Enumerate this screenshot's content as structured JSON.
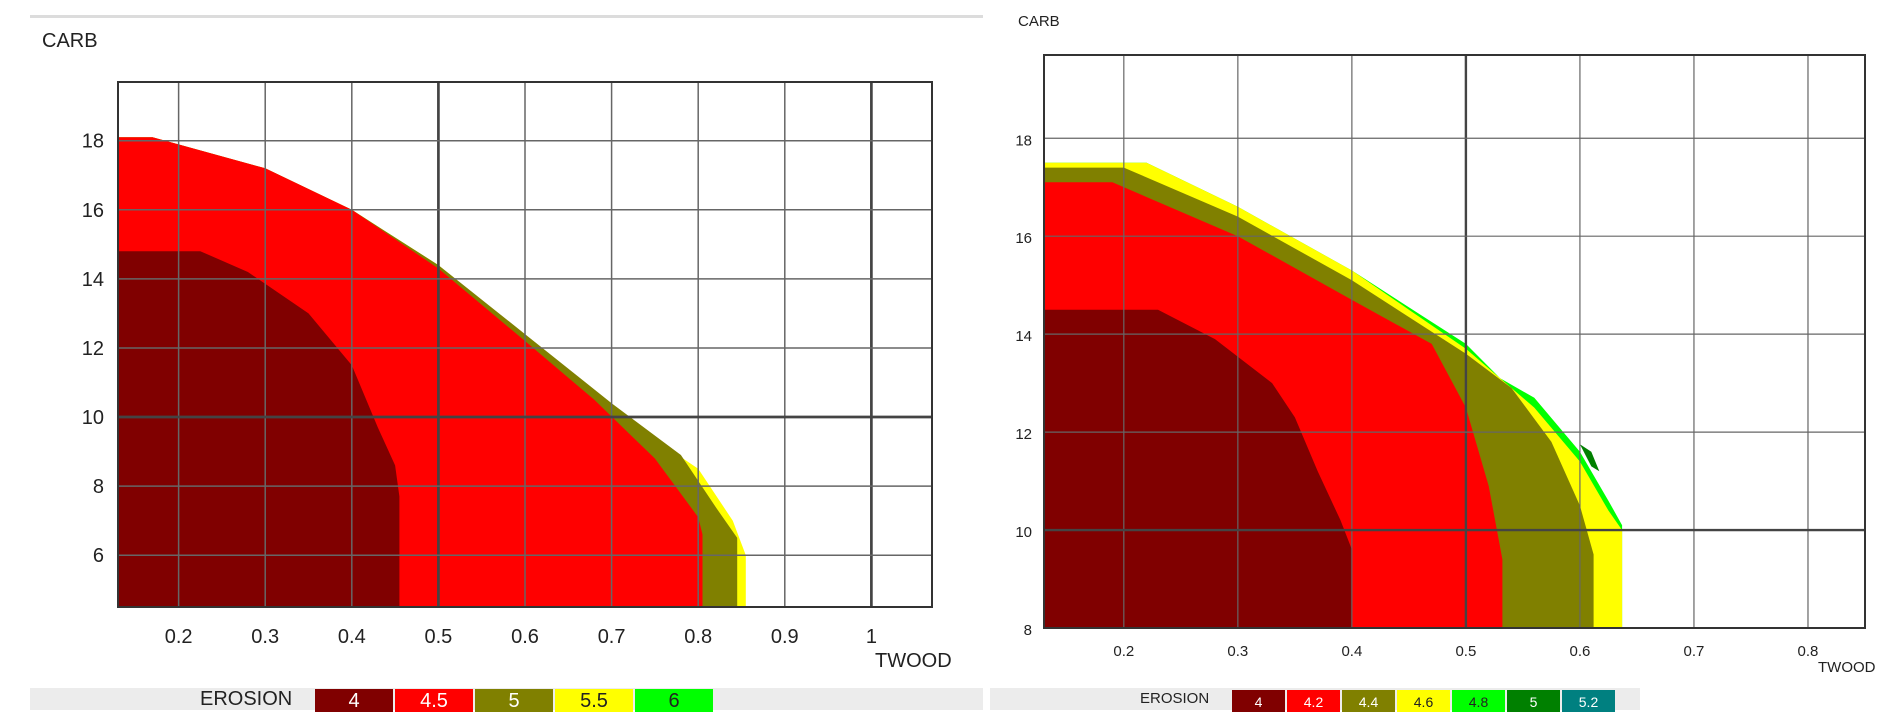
{
  "chart_data": [
    {
      "type": "area",
      "xlabel": "TWOOD",
      "ylabel": "CARB",
      "xlim": [
        0.13,
        1.07
      ],
      "ylim": [
        4.5,
        19.7
      ],
      "xticks": [
        0.2,
        0.3,
        0.4,
        0.5,
        0.6,
        0.7,
        0.8,
        0.9,
        1
      ],
      "xtick_labels": [
        "0.2",
        "0.3",
        "0.4",
        "0.5",
        "0.6",
        "0.7",
        "0.8",
        "0.9",
        "1"
      ],
      "yticks": [
        6,
        8,
        10,
        12,
        14,
        16,
        18
      ],
      "ytick_labels": [
        "6",
        "8",
        "10",
        "12",
        "14",
        "16",
        "18"
      ],
      "legend": {
        "title": "EROSION",
        "entries": [
          {
            "label": "4",
            "color": "#800000"
          },
          {
            "label": "4.5",
            "color": "#ff0000"
          },
          {
            "label": "5",
            "color": "#808000"
          },
          {
            "label": "5.5",
            "color": "#ffff00"
          },
          {
            "label": "6",
            "color": "#00ff00"
          }
        ]
      },
      "series": [
        {
          "name": "5.5",
          "color": "#ffff00",
          "x": [
            0.13,
            0.17,
            0.3,
            0.4,
            0.5,
            0.6,
            0.7,
            0.8,
            0.84,
            0.855,
            0.855,
            0.13
          ],
          "y": [
            18.1,
            18.1,
            17.2,
            16,
            14.4,
            12.2,
            10.2,
            8.5,
            7,
            6,
            4.5,
            4.5
          ]
        },
        {
          "name": "5",
          "color": "#808000",
          "x": [
            0.13,
            0.17,
            0.3,
            0.4,
            0.5,
            0.6,
            0.7,
            0.78,
            0.82,
            0.845,
            0.845,
            0.13
          ],
          "y": [
            18.1,
            18.1,
            17.2,
            16,
            14.4,
            12.4,
            10.4,
            8.9,
            7.4,
            6.5,
            4.5,
            4.5
          ]
        },
        {
          "name": "4.5",
          "color": "#ff0000",
          "x": [
            0.13,
            0.17,
            0.3,
            0.4,
            0.5,
            0.6,
            0.68,
            0.75,
            0.8,
            0.805,
            0.805,
            0.13
          ],
          "y": [
            18.1,
            18.1,
            17.2,
            16,
            14.3,
            12.2,
            10.5,
            8.8,
            7.1,
            6.6,
            4.5,
            4.5
          ]
        },
        {
          "name": "4",
          "color": "#800000",
          "x": [
            0.13,
            0.225,
            0.28,
            0.35,
            0.4,
            0.43,
            0.45,
            0.455,
            0.455,
            0.13
          ],
          "y": [
            14.8,
            14.8,
            14.2,
            13,
            11.5,
            9.7,
            8.6,
            7.7,
            4.5,
            4.5
          ]
        }
      ]
    },
    {
      "type": "area",
      "xlabel": "TWOOD",
      "ylabel": "CARB",
      "xlim": [
        0.13,
        0.85
      ],
      "ylim": [
        8,
        19.7
      ],
      "xticks": [
        0.2,
        0.3,
        0.4,
        0.5,
        0.6,
        0.7,
        0.8
      ],
      "xtick_labels": [
        "0.2",
        "0.3",
        "0.4",
        "0.5",
        "0.6",
        "0.7",
        "0.8"
      ],
      "yticks": [
        8,
        10,
        12,
        14,
        16,
        18
      ],
      "ytick_labels": [
        "8",
        "10",
        "12",
        "14",
        "16",
        "18"
      ],
      "legend": {
        "title": "EROSION",
        "entries": [
          {
            "label": "4",
            "color": "#800000"
          },
          {
            "label": "4.2",
            "color": "#ff0000"
          },
          {
            "label": "4.4",
            "color": "#808000"
          },
          {
            "label": "4.6",
            "color": "#ffff00"
          },
          {
            "label": "4.8",
            "color": "#00ff00"
          },
          {
            "label": "5",
            "color": "#008000"
          },
          {
            "label": "5.2",
            "color": "#008080"
          }
        ]
      },
      "series": [
        {
          "name": "4.8",
          "color": "#00ff00",
          "x": [
            0.13,
            0.22,
            0.3,
            0.4,
            0.46,
            0.5,
            0.53,
            0.56,
            0.6,
            0.625,
            0.637,
            0.637,
            0.13
          ],
          "y": [
            17.5,
            17.5,
            16.6,
            15.3,
            14.4,
            13.8,
            13.1,
            12.7,
            11.6,
            10.6,
            10.1,
            8,
            8
          ]
        },
        {
          "name": "5",
          "color": "#008000",
          "x": [
            0.6,
            0.61,
            0.617,
            0.61,
            0.6
          ],
          "y": [
            11.75,
            11.6,
            11.2,
            11.3,
            11.75
          ]
        },
        {
          "name": "4.6",
          "color": "#ffff00",
          "x": [
            0.13,
            0.22,
            0.3,
            0.4,
            0.45,
            0.5,
            0.53,
            0.56,
            0.6,
            0.625,
            0.637,
            0.637,
            0.13
          ],
          "y": [
            17.5,
            17.5,
            16.6,
            15.3,
            14.5,
            13.7,
            13.1,
            12.5,
            11.4,
            10.4,
            10,
            8,
            8
          ]
        },
        {
          "name": "4.4",
          "color": "#808000",
          "x": [
            0.13,
            0.2,
            0.3,
            0.4,
            0.5,
            0.54,
            0.575,
            0.6,
            0.612,
            0.612,
            0.13
          ],
          "y": [
            17.4,
            17.4,
            16.4,
            15.1,
            13.6,
            12.9,
            11.8,
            10.5,
            9.5,
            8,
            8
          ]
        },
        {
          "name": "4.2",
          "color": "#ff0000",
          "x": [
            0.13,
            0.19,
            0.3,
            0.4,
            0.47,
            0.5,
            0.52,
            0.532,
            0.532,
            0.13
          ],
          "y": [
            17.1,
            17.1,
            16,
            14.7,
            13.8,
            12.5,
            10.9,
            9.4,
            8,
            8
          ]
        },
        {
          "name": "4",
          "color": "#800000",
          "x": [
            0.13,
            0.23,
            0.28,
            0.33,
            0.35,
            0.37,
            0.39,
            0.4,
            0.4,
            0.13
          ],
          "y": [
            14.5,
            14.5,
            13.9,
            13,
            12.3,
            11.2,
            10.2,
            9.6,
            8,
            8
          ]
        }
      ]
    }
  ]
}
